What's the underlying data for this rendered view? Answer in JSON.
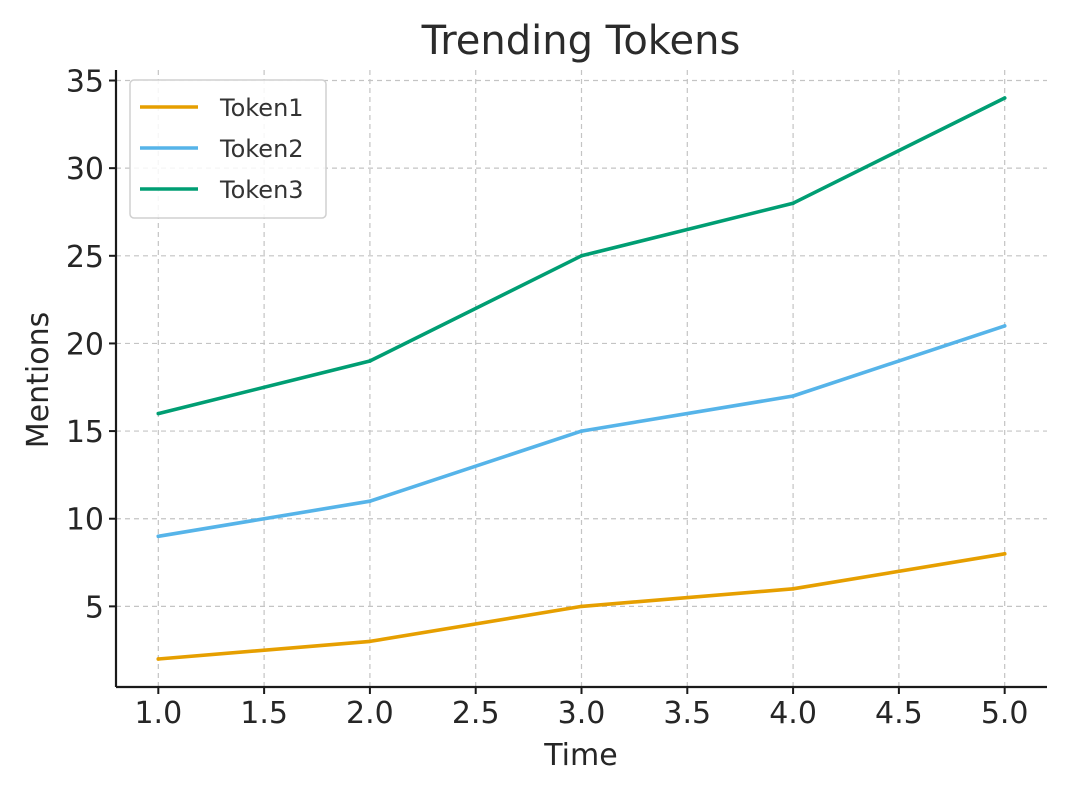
{
  "chart_data": {
    "type": "line",
    "title": "Trending Tokens",
    "xlabel": "Time",
    "ylabel": "Mentions",
    "x": [
      1.0,
      2.0,
      3.0,
      4.0,
      5.0
    ],
    "xlim": [
      0.8,
      5.2
    ],
    "ylim": [
      0.4,
      35.6
    ],
    "xticks": [
      1.0,
      1.5,
      2.0,
      2.5,
      3.0,
      3.5,
      4.0,
      4.5,
      5.0
    ],
    "xtick_labels": [
      "1.0",
      "1.5",
      "2.0",
      "2.5",
      "3.0",
      "3.5",
      "4.0",
      "4.5",
      "5.0"
    ],
    "yticks": [
      5,
      10,
      15,
      20,
      25,
      30,
      35
    ],
    "ytick_labels": [
      "5",
      "10",
      "15",
      "20",
      "25",
      "30",
      "35"
    ],
    "grid": true,
    "legend_position": "top-left",
    "series": [
      {
        "name": "Token1",
        "color": "#E69F00",
        "values": [
          2,
          3,
          5,
          6,
          8
        ]
      },
      {
        "name": "Token2",
        "color": "#56B4E9",
        "values": [
          9,
          11,
          15,
          17,
          21
        ]
      },
      {
        "name": "Token3",
        "color": "#009E73",
        "values": [
          16,
          19,
          25,
          28,
          34
        ]
      }
    ]
  }
}
